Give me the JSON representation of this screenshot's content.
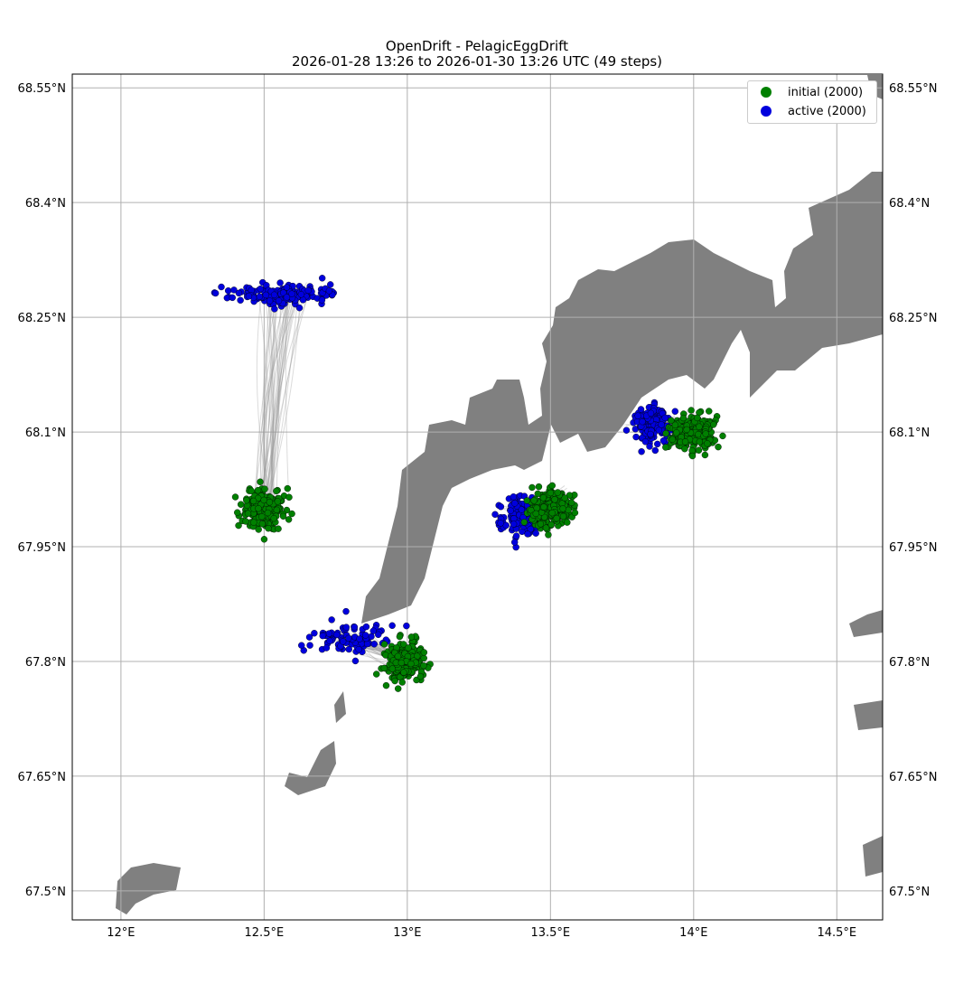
{
  "title": {
    "line1": "OpenDrift - PelagicEggDrift",
    "line2": "2026-01-28 13:26 to 2026-01-30 13:26 UTC (49 steps)"
  },
  "colors": {
    "land": "#808080",
    "initial": "#008000",
    "active": "#0000dd",
    "trajectory": "#999999",
    "grid": "#b0b0b0"
  },
  "legend": [
    {
      "label": "initial (2000)",
      "color": "#008000"
    },
    {
      "label": "active (2000)",
      "color": "#0000dd"
    }
  ],
  "axes": {
    "lon_ticks": [
      "12°E",
      "12.5°E",
      "13°E",
      "13.5°E",
      "14°E",
      "14.5°E"
    ],
    "lat_ticks_left": [
      "68.55°N",
      "68.4°N",
      "68.25°N",
      "68.1°N",
      "67.95°N",
      "67.8°N",
      "67.65°N",
      "67.5°N"
    ],
    "lat_ticks_right": [
      "68.55°N",
      "68.4°N",
      "68.25°N",
      "68.1°N",
      "67.95°N",
      "67.8°N",
      "67.65°N",
      "67.5°N"
    ],
    "lon_values": [
      12.0,
      12.5,
      13.0,
      13.5,
      14.0,
      14.5
    ],
    "lat_values": [
      68.55,
      68.4,
      68.25,
      68.1,
      67.95,
      67.8,
      67.65,
      67.5
    ],
    "lon_range": [
      11.83,
      14.66
    ],
    "lat_range": [
      67.462,
      68.568
    ]
  },
  "clusters": [
    {
      "type": "initial",
      "lon": 12.5,
      "lat": 68.0,
      "spread": 0.05
    },
    {
      "type": "initial",
      "lon": 13.0,
      "lat": 67.8,
      "spread": 0.05
    },
    {
      "type": "initial",
      "lon": 13.5,
      "lat": 68.0,
      "spread": 0.05
    },
    {
      "type": "initial",
      "lon": 14.0,
      "lat": 68.1,
      "spread": 0.05
    },
    {
      "type": "active",
      "lon": 12.57,
      "lat": 68.28,
      "spread": 0.04,
      "note_shape": "elongated-east"
    },
    {
      "type": "active",
      "lon": 12.8,
      "lat": 67.83,
      "spread": 0.04
    },
    {
      "type": "active",
      "lon": 13.4,
      "lat": 67.99,
      "spread": 0.04
    },
    {
      "type": "active",
      "lon": 13.86,
      "lat": 68.11,
      "spread": 0.04
    }
  ]
}
